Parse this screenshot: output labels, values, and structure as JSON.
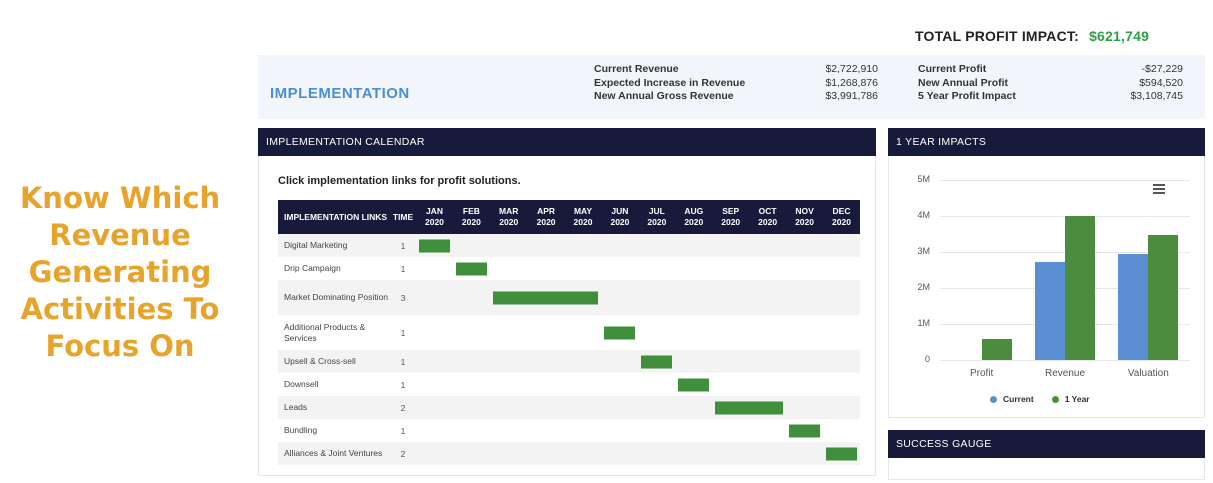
{
  "tagline": [
    "Know Which",
    "Revenue",
    "Generating",
    "Activities To",
    "Focus On"
  ],
  "total_profit": {
    "label": "TOTAL PROFIT IMPACT:",
    "value": "$621,749"
  },
  "implementation_title": "IMPLEMENTATION",
  "revenue_stats": [
    {
      "label": "Current Revenue",
      "value": "$2,722,910"
    },
    {
      "label": "Expected Increase in Revenue",
      "value": "$1,268,876"
    },
    {
      "label": "New Annual Gross Revenue",
      "value": "$3,991,786"
    }
  ],
  "profit_stats": [
    {
      "label": "Current Profit",
      "value": "-$27,229"
    },
    {
      "label": "New Annual Profit",
      "value": "$594,520"
    },
    {
      "label": "5 Year Profit Impact",
      "value": "$3,108,745"
    }
  ],
  "calendar": {
    "panel_title": "IMPLEMENTATION CALENDAR",
    "note": "Click implementation links for profit solutions.",
    "col_links": "IMPLEMENTATION LINKS",
    "col_time": "TIME",
    "months": [
      [
        "JAN",
        "2020"
      ],
      [
        "FEB",
        "2020"
      ],
      [
        "MAR",
        "2020"
      ],
      [
        "APR",
        "2020"
      ],
      [
        "MAY",
        "2020"
      ],
      [
        "JUN",
        "2020"
      ],
      [
        "JUL",
        "2020"
      ],
      [
        "AUG",
        "2020"
      ],
      [
        "SEP",
        "2020"
      ],
      [
        "OCT",
        "2020"
      ],
      [
        "NOV",
        "2020"
      ],
      [
        "DEC",
        "2020"
      ]
    ],
    "rows": [
      {
        "name": "Digital Marketing",
        "time": "1",
        "start": 0,
        "span": 1
      },
      {
        "name": "Drip Campaign",
        "time": "1",
        "start": 1,
        "span": 1
      },
      {
        "name": "Market Dominating Position",
        "time": "3",
        "start": 2,
        "span": 3
      },
      {
        "name": "Additional Products & Services",
        "time": "1",
        "start": 5,
        "span": 1
      },
      {
        "name": "Upsell & Cross-sell",
        "time": "1",
        "start": 6,
        "span": 1
      },
      {
        "name": "Downsell",
        "time": "1",
        "start": 7,
        "span": 1
      },
      {
        "name": "Leads",
        "time": "2",
        "start": 8,
        "span": 2
      },
      {
        "name": "Bundling",
        "time": "1",
        "start": 10,
        "span": 1
      },
      {
        "name": "Alliances & Joint Ventures",
        "time": "2",
        "start": 11,
        "span": 1
      }
    ],
    "bar_color": "#3F8F3C"
  },
  "impacts_title": "1 YEAR IMPACTS",
  "success_title": "SUCCESS GAUGE",
  "menu_icon": "hamburger-menu-icon",
  "chart_data": {
    "type": "bar",
    "categories": [
      "Profit",
      "Revenue",
      "Valuation"
    ],
    "series": [
      {
        "name": "Current",
        "values": [
          0,
          2.72,
          2.95
        ],
        "color": "#5B8FD3"
      },
      {
        "name": "1 Year",
        "values": [
          0.59,
          3.99,
          3.48
        ],
        "color": "#4C8C3E"
      }
    ],
    "yticks": [
      "0",
      "1M",
      "2M",
      "3M",
      "4M",
      "5M"
    ],
    "ylim": [
      0,
      5
    ],
    "legend": "bottom"
  }
}
